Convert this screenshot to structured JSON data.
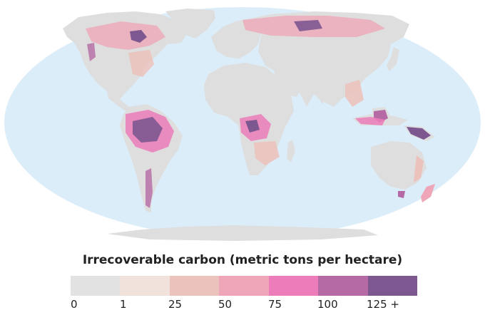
{
  "legend": {
    "title": "Irrecoverable carbon (metric tons per hectare)",
    "classes": [
      {
        "color": "#e2e2e2"
      },
      {
        "color": "#f1e2db"
      },
      {
        "color": "#ecc2bc"
      },
      {
        "color": "#eea6b8"
      },
      {
        "color": "#ec7dba"
      },
      {
        "color": "#b56aa5"
      },
      {
        "color": "#7d5790"
      }
    ],
    "ticks": [
      "0",
      "1",
      "25",
      "50",
      "75",
      "100",
      "125 +"
    ]
  },
  "map": {
    "projection": "Robinson",
    "ocean_color": "#dcedfa",
    "land_color": "#dedede",
    "hotspots": [
      "Amazon basin",
      "Congo basin",
      "Indonesia",
      "New Guinea",
      "Siberia",
      "Hudson Bay lowlands"
    ]
  }
}
